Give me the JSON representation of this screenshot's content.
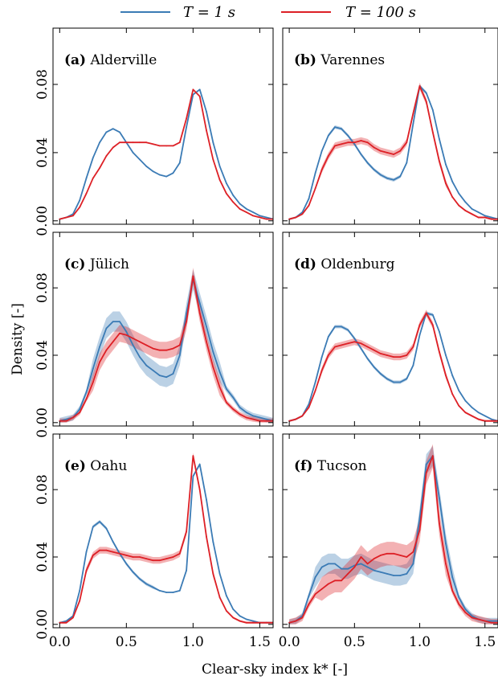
{
  "legend": {
    "entries": [
      {
        "label": "T = 1 s",
        "color": "#3b7bb5"
      },
      {
        "label": "T = 100 s",
        "color": "#dd2026"
      }
    ]
  },
  "xlabel": "Clear-sky index k* [-]",
  "ylabel": "Density [-]",
  "chart_data": [
    {
      "type": "line",
      "panel_letter": "(a)",
      "panel_name": "Alderville",
      "xlim": [
        -0.05,
        1.6
      ],
      "ylim": [
        -0.002,
        0.113
      ],
      "xticks": [
        "0.0",
        "0.5",
        "1.0",
        "1.5"
      ],
      "yticks": [
        "0.00",
        "0.04",
        "0.08"
      ],
      "x": [
        0.0,
        0.05,
        0.1,
        0.15,
        0.2,
        0.25,
        0.3,
        0.35,
        0.4,
        0.45,
        0.5,
        0.55,
        0.6,
        0.65,
        0.7,
        0.75,
        0.8,
        0.85,
        0.9,
        0.95,
        1.0,
        1.05,
        1.1,
        1.15,
        1.2,
        1.25,
        1.3,
        1.35,
        1.4,
        1.45,
        1.5,
        1.55,
        1.6
      ],
      "series": [
        {
          "name": "T = 1 s",
          "color": "#3b7bb5",
          "band": 0,
          "values": [
            0.001,
            0.002,
            0.004,
            0.012,
            0.025,
            0.037,
            0.046,
            0.052,
            0.054,
            0.052,
            0.046,
            0.04,
            0.036,
            0.032,
            0.029,
            0.027,
            0.026,
            0.028,
            0.034,
            0.055,
            0.074,
            0.077,
            0.064,
            0.046,
            0.032,
            0.022,
            0.015,
            0.01,
            0.007,
            0.005,
            0.003,
            0.002,
            0.001
          ]
        },
        {
          "name": "T = 100 s",
          "color": "#dd2026",
          "band": 0,
          "values": [
            0.001,
            0.002,
            0.003,
            0.008,
            0.016,
            0.025,
            0.031,
            0.038,
            0.043,
            0.046,
            0.046,
            0.046,
            0.046,
            0.046,
            0.045,
            0.044,
            0.044,
            0.044,
            0.046,
            0.06,
            0.077,
            0.073,
            0.053,
            0.036,
            0.024,
            0.016,
            0.011,
            0.007,
            0.005,
            0.003,
            0.002,
            0.001,
            0.001
          ]
        }
      ]
    },
    {
      "type": "line",
      "panel_letter": "(b)",
      "panel_name": "Varennes",
      "xlim": [
        -0.05,
        1.6
      ],
      "ylim": [
        -0.002,
        0.113
      ],
      "xticks": [
        "0.0",
        "0.5",
        "1.0",
        "1.5"
      ],
      "yticks": [],
      "x": [
        0.0,
        0.05,
        0.1,
        0.15,
        0.2,
        0.25,
        0.3,
        0.35,
        0.4,
        0.45,
        0.5,
        0.55,
        0.6,
        0.65,
        0.7,
        0.75,
        0.8,
        0.85,
        0.9,
        0.95,
        1.0,
        1.05,
        1.1,
        1.15,
        1.2,
        1.25,
        1.3,
        1.35,
        1.4,
        1.45,
        1.5,
        1.55,
        1.6
      ],
      "series": [
        {
          "name": "T = 1 s",
          "color": "#3b7bb5",
          "band": 0.001,
          "values": [
            0.001,
            0.002,
            0.005,
            0.013,
            0.028,
            0.041,
            0.05,
            0.055,
            0.054,
            0.05,
            0.045,
            0.039,
            0.034,
            0.03,
            0.027,
            0.025,
            0.024,
            0.026,
            0.034,
            0.057,
            0.079,
            0.075,
            0.065,
            0.048,
            0.033,
            0.023,
            0.016,
            0.011,
            0.007,
            0.005,
            0.003,
            0.002,
            0.001
          ]
        },
        {
          "name": "T = 100 s",
          "color": "#dd2026",
          "band": 0.002,
          "values": [
            0.001,
            0.002,
            0.004,
            0.009,
            0.019,
            0.03,
            0.038,
            0.044,
            0.045,
            0.046,
            0.046,
            0.047,
            0.046,
            0.043,
            0.041,
            0.04,
            0.039,
            0.041,
            0.046,
            0.063,
            0.079,
            0.07,
            0.052,
            0.035,
            0.022,
            0.014,
            0.009,
            0.006,
            0.004,
            0.002,
            0.002,
            0.001,
            0.001
          ]
        }
      ]
    },
    {
      "type": "line",
      "panel_letter": "(c)",
      "panel_name": "Jülich",
      "xlim": [
        -0.05,
        1.6
      ],
      "ylim": [
        -0.002,
        0.113
      ],
      "xticks": [
        "0.0",
        "0.5",
        "1.0",
        "1.5"
      ],
      "yticks": [
        "0.00",
        "0.04",
        "0.08"
      ],
      "x": [
        0.0,
        0.05,
        0.1,
        0.15,
        0.2,
        0.25,
        0.3,
        0.35,
        0.4,
        0.45,
        0.5,
        0.55,
        0.6,
        0.65,
        0.7,
        0.75,
        0.8,
        0.85,
        0.9,
        0.95,
        1.0,
        1.05,
        1.1,
        1.15,
        1.2,
        1.25,
        1.3,
        1.35,
        1.4,
        1.45,
        1.5,
        1.55,
        1.6
      ],
      "series": [
        {
          "name": "T = 1 s",
          "color": "#3b7bb5",
          "band": 0.006,
          "values": [
            0.001,
            0.002,
            0.003,
            0.008,
            0.018,
            0.032,
            0.045,
            0.056,
            0.06,
            0.06,
            0.054,
            0.046,
            0.039,
            0.034,
            0.031,
            0.028,
            0.027,
            0.029,
            0.04,
            0.065,
            0.085,
            0.071,
            0.057,
            0.042,
            0.03,
            0.02,
            0.015,
            0.009,
            0.006,
            0.004,
            0.003,
            0.002,
            0.001
          ]
        },
        {
          "name": "T = 100 s",
          "color": "#dd2026",
          "band": 0.005,
          "values": [
            0.001,
            0.001,
            0.003,
            0.006,
            0.014,
            0.024,
            0.036,
            0.043,
            0.048,
            0.053,
            0.052,
            0.05,
            0.048,
            0.046,
            0.044,
            0.043,
            0.043,
            0.044,
            0.046,
            0.06,
            0.087,
            0.065,
            0.048,
            0.033,
            0.021,
            0.012,
            0.008,
            0.005,
            0.003,
            0.002,
            0.001,
            0.001,
            0.001
          ]
        }
      ]
    },
    {
      "type": "line",
      "panel_letter": "(d)",
      "panel_name": "Oldenburg",
      "xlim": [
        -0.05,
        1.6
      ],
      "ylim": [
        -0.002,
        0.113
      ],
      "xticks": [
        "0.0",
        "0.5",
        "1.0",
        "1.5"
      ],
      "yticks": [],
      "x": [
        0.0,
        0.05,
        0.1,
        0.15,
        0.2,
        0.25,
        0.3,
        0.35,
        0.4,
        0.45,
        0.5,
        0.55,
        0.6,
        0.65,
        0.7,
        0.75,
        0.8,
        0.85,
        0.9,
        0.95,
        1.0,
        1.05,
        1.1,
        1.15,
        1.2,
        1.25,
        1.3,
        1.35,
        1.4,
        1.45,
        1.5,
        1.55,
        1.6
      ],
      "series": [
        {
          "name": "T = 1 s",
          "color": "#3b7bb5",
          "band": 0.001,
          "values": [
            0.001,
            0.002,
            0.004,
            0.011,
            0.024,
            0.039,
            0.051,
            0.057,
            0.057,
            0.055,
            0.05,
            0.044,
            0.038,
            0.033,
            0.029,
            0.026,
            0.024,
            0.024,
            0.026,
            0.034,
            0.052,
            0.065,
            0.064,
            0.054,
            0.04,
            0.028,
            0.019,
            0.013,
            0.009,
            0.006,
            0.004,
            0.002,
            0.001
          ]
        },
        {
          "name": "T = 100 s",
          "color": "#dd2026",
          "band": 0.002,
          "values": [
            0.001,
            0.002,
            0.004,
            0.009,
            0.019,
            0.031,
            0.04,
            0.045,
            0.046,
            0.047,
            0.048,
            0.047,
            0.045,
            0.043,
            0.041,
            0.04,
            0.039,
            0.039,
            0.04,
            0.045,
            0.058,
            0.065,
            0.058,
            0.042,
            0.028,
            0.017,
            0.01,
            0.006,
            0.004,
            0.002,
            0.001,
            0.001,
            0.001
          ]
        }
      ]
    },
    {
      "type": "line",
      "panel_letter": "(e)",
      "panel_name": "Oahu",
      "xlim": [
        -0.05,
        1.6
      ],
      "ylim": [
        -0.002,
        0.113
      ],
      "xticks": [
        "0.0",
        "0.5",
        "1.0",
        "1.5"
      ],
      "yticks": [
        "0.00",
        "0.04",
        "0.08"
      ],
      "x": [
        0.0,
        0.05,
        0.1,
        0.15,
        0.2,
        0.25,
        0.3,
        0.35,
        0.4,
        0.45,
        0.5,
        0.55,
        0.6,
        0.65,
        0.7,
        0.75,
        0.8,
        0.85,
        0.9,
        0.95,
        1.0,
        1.05,
        1.1,
        1.15,
        1.2,
        1.25,
        1.3,
        1.35,
        1.4,
        1.45,
        1.5,
        1.55,
        1.6
      ],
      "series": [
        {
          "name": "T = 1 s",
          "color": "#3b7bb5",
          "band": 0.001,
          "values": [
            0.001,
            0.002,
            0.005,
            0.02,
            0.043,
            0.058,
            0.061,
            0.057,
            0.049,
            0.042,
            0.036,
            0.031,
            0.027,
            0.024,
            0.022,
            0.02,
            0.019,
            0.019,
            0.02,
            0.032,
            0.088,
            0.095,
            0.074,
            0.049,
            0.03,
            0.017,
            0.009,
            0.005,
            0.003,
            0.002,
            0.001,
            0.001,
            0.001
          ]
        },
        {
          "name": "T = 100 s",
          "color": "#dd2026",
          "band": 0.002,
          "values": [
            0.001,
            0.001,
            0.004,
            0.014,
            0.032,
            0.041,
            0.044,
            0.044,
            0.043,
            0.042,
            0.041,
            0.04,
            0.04,
            0.039,
            0.038,
            0.038,
            0.039,
            0.04,
            0.042,
            0.055,
            0.1,
            0.08,
            0.052,
            0.03,
            0.016,
            0.008,
            0.004,
            0.002,
            0.001,
            0.001,
            0.001,
            0.001,
            0.001
          ]
        }
      ]
    },
    {
      "type": "line",
      "panel_letter": "(f)",
      "panel_name": "Tucson",
      "xlim": [
        -0.05,
        1.6
      ],
      "ylim": [
        -0.002,
        0.113
      ],
      "xticks": [
        "0.0",
        "0.5",
        "1.0",
        "1.5"
      ],
      "yticks": [],
      "x": [
        0.0,
        0.05,
        0.1,
        0.15,
        0.2,
        0.25,
        0.3,
        0.35,
        0.4,
        0.45,
        0.5,
        0.55,
        0.6,
        0.65,
        0.7,
        0.75,
        0.8,
        0.85,
        0.9,
        0.95,
        1.0,
        1.05,
        1.1,
        1.15,
        1.2,
        1.25,
        1.3,
        1.35,
        1.4,
        1.45,
        1.5,
        1.55,
        1.6
      ],
      "series": [
        {
          "name": "T = 1 s",
          "color": "#3b7bb5",
          "band": 0.006,
          "values": [
            0.001,
            0.002,
            0.005,
            0.017,
            0.028,
            0.034,
            0.036,
            0.036,
            0.033,
            0.033,
            0.035,
            0.036,
            0.034,
            0.032,
            0.031,
            0.03,
            0.029,
            0.029,
            0.03,
            0.036,
            0.063,
            0.095,
            0.1,
            0.075,
            0.048,
            0.028,
            0.016,
            0.009,
            0.005,
            0.003,
            0.002,
            0.002,
            0.002
          ]
        },
        {
          "name": "T = 100 s",
          "color": "#dd2026",
          "band": 0.007,
          "values": [
            0.001,
            0.002,
            0.004,
            0.012,
            0.018,
            0.021,
            0.024,
            0.026,
            0.026,
            0.03,
            0.034,
            0.04,
            0.036,
            0.039,
            0.041,
            0.042,
            0.042,
            0.041,
            0.04,
            0.043,
            0.056,
            0.09,
            0.1,
            0.06,
            0.036,
            0.02,
            0.012,
            0.007,
            0.004,
            0.003,
            0.002,
            0.001,
            0.001
          ]
        }
      ]
    }
  ]
}
